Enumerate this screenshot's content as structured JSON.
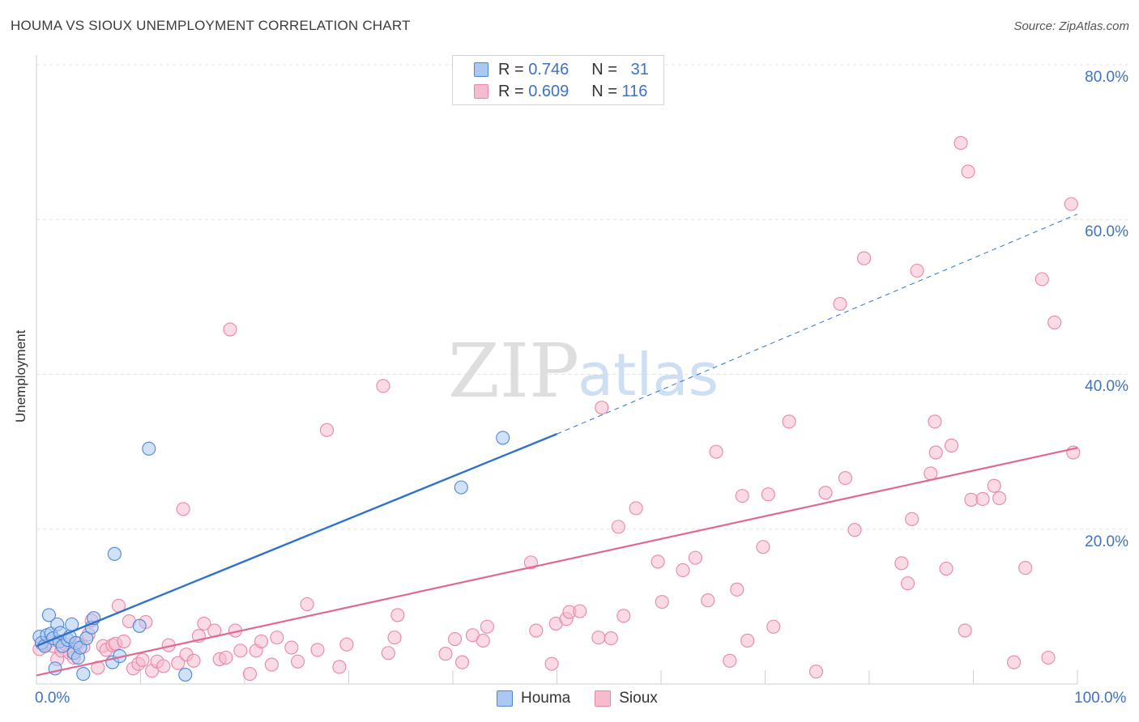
{
  "title": "HOUMA VS SIOUX UNEMPLOYMENT CORRELATION CHART",
  "source": "Source: ZipAtlas.com",
  "watermark": {
    "zip": "ZIP",
    "atlas": "atlas"
  },
  "legend": {
    "houma": {
      "r_label": "R = ",
      "r_value": "0.746",
      "n_label": "N = ",
      "n_value": "31"
    },
    "sioux": {
      "r_label": "R = ",
      "r_value": "0.609",
      "n_label": "N = ",
      "n_value": "116"
    }
  },
  "colors": {
    "houma_fill": "#a9c8f2",
    "houma_stroke": "#4f87d6",
    "houma_line": "#2f72cc",
    "sioux_fill": "#f6bccd",
    "sioux_stroke": "#e887a6",
    "sioux_line": "#e06892",
    "tick_text": "#3d72c5",
    "grid": "#e3e3e3"
  },
  "chart_data": {
    "type": "scatter",
    "title": "HOUMA VS SIOUX UNEMPLOYMENT CORRELATION CHART",
    "xlabel": "",
    "ylabel": "Unemployment",
    "xlim": [
      0,
      100
    ],
    "ylim": [
      0,
      80
    ],
    "x_tick_labels": [
      "0.0%",
      "100.0%"
    ],
    "y_ticks": [
      20,
      40,
      60,
      80
    ],
    "y_tick_labels": [
      "20.0%",
      "40.0%",
      "60.0%",
      "80.0%"
    ],
    "series": [
      {
        "name": "Houma",
        "R": 0.746,
        "N": 31,
        "trend": {
          "x0": 0,
          "y0": 4.9,
          "x1": 50,
          "y1": 32.3,
          "dashed_to_x": 100,
          "dashed_to_y": 60.7
        },
        "points": [
          [
            0.3,
            6.1
          ],
          [
            0.5,
            5.3
          ],
          [
            0.8,
            4.9
          ],
          [
            1.0,
            6.3
          ],
          [
            1.2,
            8.9
          ],
          [
            1.4,
            6.5
          ],
          [
            1.6,
            5.9
          ],
          [
            1.8,
            2.0
          ],
          [
            2.0,
            7.7
          ],
          [
            2.2,
            5.5
          ],
          [
            2.3,
            6.6
          ],
          [
            2.5,
            4.9
          ],
          [
            3.0,
            5.7
          ],
          [
            3.2,
            6.1
          ],
          [
            3.4,
            7.7
          ],
          [
            3.6,
            4.0
          ],
          [
            3.8,
            5.3
          ],
          [
            4.0,
            3.4
          ],
          [
            4.2,
            4.7
          ],
          [
            4.5,
            1.3
          ],
          [
            4.8,
            5.9
          ],
          [
            5.3,
            7.3
          ],
          [
            5.5,
            8.5
          ],
          [
            7.3,
            2.8
          ],
          [
            7.5,
            16.8
          ],
          [
            8.0,
            3.6
          ],
          [
            9.9,
            7.5
          ],
          [
            10.8,
            30.4
          ],
          [
            14.3,
            1.2
          ],
          [
            40.8,
            25.4
          ],
          [
            44.8,
            31.8
          ]
        ]
      },
      {
        "name": "Sioux",
        "R": 0.609,
        "N": 116,
        "trend": {
          "x0": 0,
          "y0": 1.1,
          "x1": 100,
          "y1": 30.5
        },
        "points": [
          [
            0.3,
            4.5
          ],
          [
            0.8,
            5.1
          ],
          [
            1.2,
            5.5
          ],
          [
            1.6,
            4.9
          ],
          [
            2.0,
            3.2
          ],
          [
            2.4,
            4.3
          ],
          [
            2.8,
            5.1
          ],
          [
            3.2,
            4.0
          ],
          [
            3.6,
            3.4
          ],
          [
            4.0,
            5.2
          ],
          [
            4.5,
            4.8
          ],
          [
            5.0,
            6.4
          ],
          [
            5.3,
            8.2
          ],
          [
            5.9,
            2.1
          ],
          [
            6.4,
            4.9
          ],
          [
            6.7,
            4.4
          ],
          [
            7.3,
            5.0
          ],
          [
            7.6,
            5.2
          ],
          [
            7.9,
            10.1
          ],
          [
            8.4,
            5.5
          ],
          [
            8.9,
            8.1
          ],
          [
            9.3,
            2.0
          ],
          [
            9.8,
            2.6
          ],
          [
            10.2,
            3.1
          ],
          [
            10.5,
            8.0
          ],
          [
            11.1,
            1.7
          ],
          [
            11.6,
            2.9
          ],
          [
            12.2,
            2.3
          ],
          [
            12.7,
            5.0
          ],
          [
            13.6,
            2.7
          ],
          [
            14.1,
            22.6
          ],
          [
            14.4,
            3.8
          ],
          [
            15.1,
            3.0
          ],
          [
            15.6,
            6.2
          ],
          [
            16.1,
            7.8
          ],
          [
            17.1,
            6.9
          ],
          [
            17.6,
            3.2
          ],
          [
            18.2,
            3.4
          ],
          [
            18.6,
            45.8
          ],
          [
            19.1,
            6.9
          ],
          [
            19.6,
            4.3
          ],
          [
            20.5,
            1.3
          ],
          [
            21.1,
            4.3
          ],
          [
            21.6,
            5.5
          ],
          [
            22.6,
            2.5
          ],
          [
            23.1,
            6.0
          ],
          [
            24.5,
            4.7
          ],
          [
            25.1,
            2.9
          ],
          [
            26.0,
            10.3
          ],
          [
            27.0,
            4.4
          ],
          [
            27.9,
            32.8
          ],
          [
            29.1,
            2.2
          ],
          [
            29.8,
            5.1
          ],
          [
            33.3,
            38.5
          ],
          [
            33.8,
            4.0
          ],
          [
            34.4,
            6.0
          ],
          [
            34.7,
            8.9
          ],
          [
            39.3,
            3.9
          ],
          [
            40.2,
            5.8
          ],
          [
            40.9,
            2.8
          ],
          [
            41.9,
            6.3
          ],
          [
            42.9,
            5.6
          ],
          [
            43.3,
            7.4
          ],
          [
            47.5,
            15.7
          ],
          [
            48.0,
            6.9
          ],
          [
            49.5,
            2.6
          ],
          [
            49.9,
            7.8
          ],
          [
            50.9,
            8.4
          ],
          [
            51.2,
            9.3
          ],
          [
            52.2,
            9.4
          ],
          [
            54.0,
            6.0
          ],
          [
            54.3,
            35.7
          ],
          [
            55.2,
            5.9
          ],
          [
            55.9,
            20.3
          ],
          [
            56.4,
            8.8
          ],
          [
            57.6,
            22.7
          ],
          [
            59.7,
            15.8
          ],
          [
            60.1,
            10.6
          ],
          [
            62.1,
            14.7
          ],
          [
            63.3,
            16.3
          ],
          [
            64.5,
            10.8
          ],
          [
            65.3,
            30.0
          ],
          [
            66.6,
            3.0
          ],
          [
            67.3,
            12.2
          ],
          [
            67.8,
            24.3
          ],
          [
            68.3,
            5.6
          ],
          [
            69.8,
            17.7
          ],
          [
            70.3,
            24.5
          ],
          [
            70.8,
            7.4
          ],
          [
            72.3,
            33.9
          ],
          [
            74.9,
            1.6
          ],
          [
            75.8,
            24.7
          ],
          [
            77.2,
            49.1
          ],
          [
            77.7,
            26.6
          ],
          [
            78.6,
            19.9
          ],
          [
            79.5,
            55.0
          ],
          [
            83.1,
            15.6
          ],
          [
            83.7,
            13.0
          ],
          [
            84.1,
            21.3
          ],
          [
            84.6,
            53.4
          ],
          [
            85.9,
            27.2
          ],
          [
            86.3,
            33.9
          ],
          [
            86.4,
            29.9
          ],
          [
            87.4,
            14.9
          ],
          [
            87.9,
            30.8
          ],
          [
            88.8,
            69.9
          ],
          [
            89.2,
            6.9
          ],
          [
            89.5,
            66.2
          ],
          [
            89.8,
            23.8
          ],
          [
            90.9,
            23.9
          ],
          [
            92.0,
            25.6
          ],
          [
            92.5,
            24.0
          ],
          [
            93.9,
            2.8
          ],
          [
            95.0,
            15.0
          ],
          [
            96.6,
            52.3
          ],
          [
            97.2,
            3.4
          ],
          [
            97.8,
            46.7
          ],
          [
            99.4,
            62.0
          ],
          [
            99.6,
            29.9
          ]
        ]
      }
    ]
  }
}
